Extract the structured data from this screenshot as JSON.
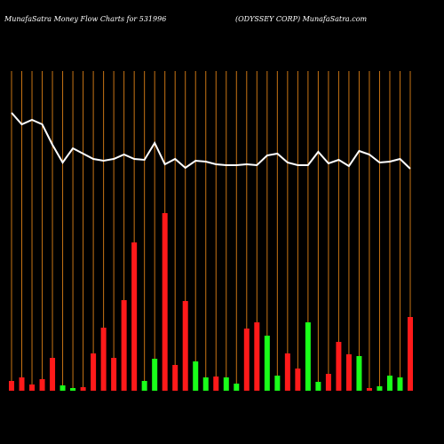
{
  "chart_data": {
    "type": "bar",
    "title": "MunafaSatra  Money Flow  Charts for 531996",
    "subtitle": "(ODYSSEY CORP) MunafaSatra.com",
    "ylim": [
      0,
      360
    ],
    "grid_color": "#c87414",
    "values": [
      11,
      15,
      7,
      13,
      37,
      6,
      3,
      4,
      42,
      71,
      37,
      102,
      167,
      11,
      36,
      200,
      29,
      101,
      33,
      15,
      16,
      15,
      8,
      70,
      77,
      62,
      17,
      42,
      25,
      77,
      10,
      19,
      55,
      41,
      39,
      3,
      5,
      17,
      15,
      83
    ],
    "bar_colors": [
      "#ff1a1a",
      "#ff1a1a",
      "#ff1a1a",
      "#ff1a1a",
      "#ff1a1a",
      "#1aff1a",
      "#1aff1a",
      "#ff1a1a",
      "#ff1a1a",
      "#ff1a1a",
      "#ff1a1a",
      "#ff1a1a",
      "#ff1a1a",
      "#1aff1a",
      "#1aff1a",
      "#ff1a1a",
      "#ff1a1a",
      "#ff1a1a",
      "#1aff1a",
      "#1aff1a",
      "#ff1a1a",
      "#1aff1a",
      "#1aff1a",
      "#ff1a1a",
      "#ff1a1a",
      "#1aff1a",
      "#1aff1a",
      "#ff1a1a",
      "#ff1a1a",
      "#1aff1a",
      "#1aff1a",
      "#ff1a1a",
      "#ff1a1a",
      "#ff1a1a",
      "#1aff1a",
      "#ff1a1a",
      "#1aff1a",
      "#1aff1a",
      "#1aff1a",
      "#ff1a1a"
    ],
    "line": {
      "color": "#ffffff",
      "values": [
        313,
        300,
        305,
        300,
        277,
        257,
        273,
        267,
        261,
        259,
        261,
        266,
        261,
        260,
        279,
        255,
        261,
        251,
        259,
        258,
        255,
        254,
        254,
        255,
        254,
        265,
        267,
        257,
        254,
        254,
        269,
        256,
        260,
        253,
        270,
        266,
        257,
        258,
        261,
        250
      ]
    }
  }
}
